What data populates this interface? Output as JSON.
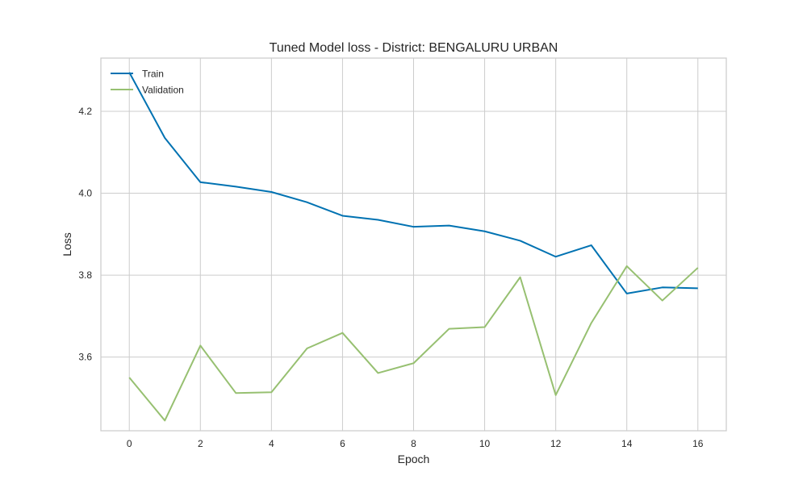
{
  "chart_data": {
    "type": "line",
    "title": "Tuned Model loss - District: BENGALURU URBAN",
    "xlabel": "Epoch",
    "ylabel": "Loss",
    "xlim": [
      -0.8,
      16.8
    ],
    "ylim": [
      3.42,
      4.33
    ],
    "xticks": [
      0,
      2,
      4,
      6,
      8,
      10,
      12,
      14,
      16
    ],
    "xtick_labels": [
      "0",
      "2",
      "4",
      "6",
      "8",
      "10",
      "12",
      "14",
      "16"
    ],
    "yticks": [
      3.6,
      3.8,
      4.0,
      4.2
    ],
    "ytick_labels": [
      "3.6",
      "3.8",
      "4.0",
      "4.2"
    ],
    "grid": true,
    "legend_position": "top-left",
    "x": [
      0,
      1,
      2,
      3,
      4,
      5,
      6,
      7,
      8,
      9,
      10,
      11,
      12,
      13,
      14,
      15,
      16
    ],
    "series": [
      {
        "name": "Train",
        "color": "#0072B2",
        "values": [
          4.295,
          4.135,
          4.027,
          4.016,
          4.003,
          3.978,
          3.945,
          3.935,
          3.918,
          3.921,
          3.907,
          3.884,
          3.845,
          3.873,
          3.755,
          3.77,
          3.768
        ]
      },
      {
        "name": "Validation",
        "color": "#97C071",
        "values": [
          3.55,
          3.445,
          3.628,
          3.512,
          3.514,
          3.621,
          3.659,
          3.561,
          3.585,
          3.669,
          3.673,
          3.795,
          3.507,
          3.683,
          3.822,
          3.738,
          3.818
        ]
      }
    ]
  }
}
